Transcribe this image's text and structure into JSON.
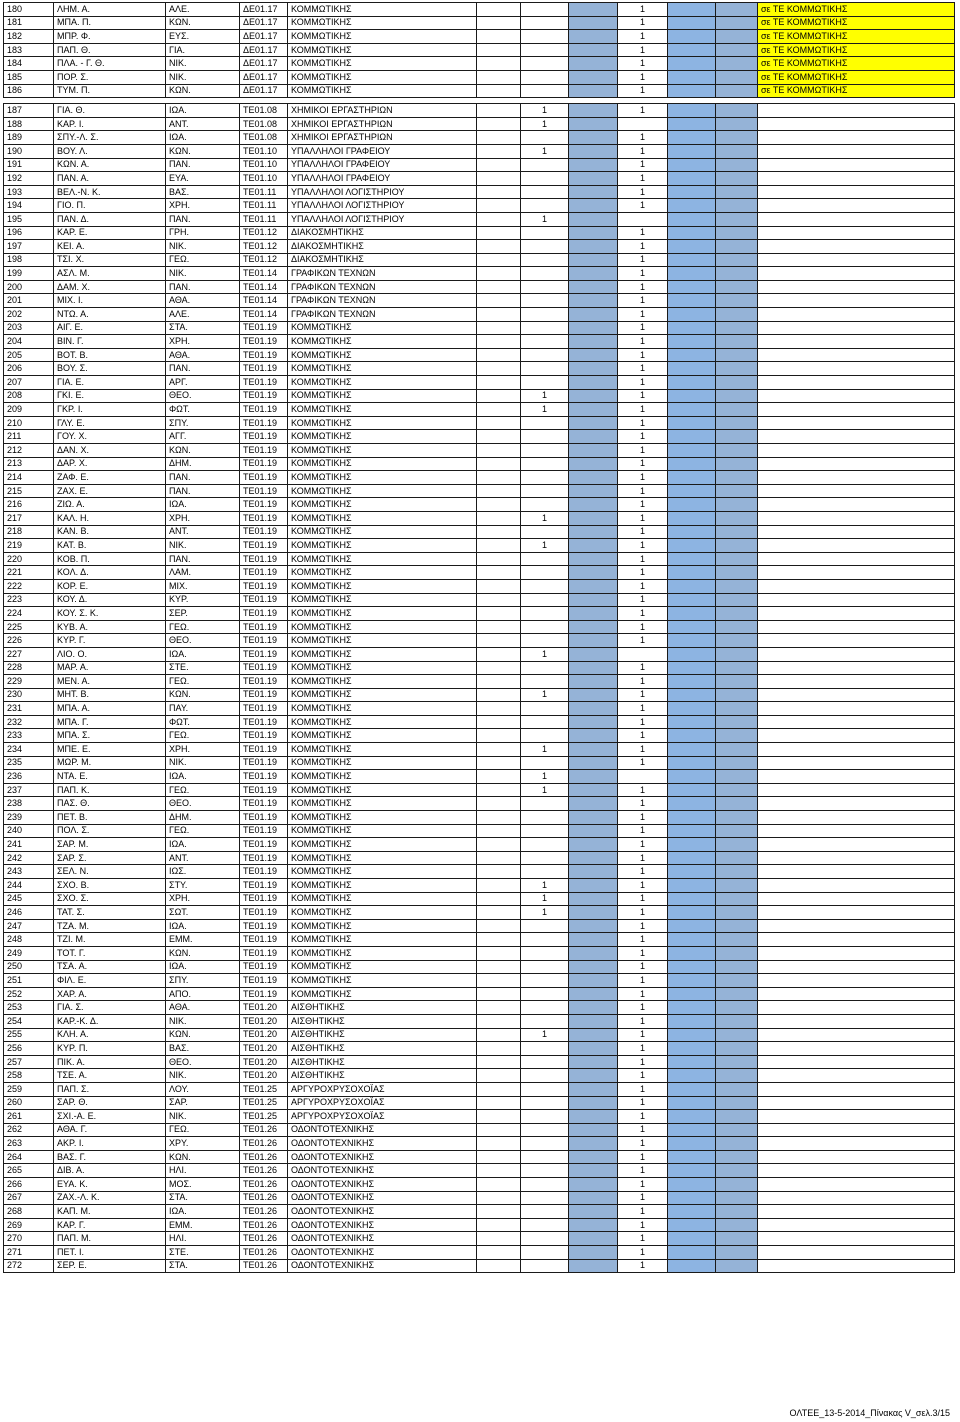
{
  "rows": [
    {
      "n": "180",
      "name": "ΛΗΜ. Α.",
      "father": "ΑΛΕ.",
      "code": "ΔΕ01.17",
      "spec": "ΚΟΜΜΩΤΙΚΗΣ",
      "c1": "",
      "c2": "1",
      "note": "σε ΤΕ ΚΟΜΜΩΤΙΚΗΣ"
    },
    {
      "n": "181",
      "name": "ΜΠΑ. Π.",
      "father": "ΚΩΝ.",
      "code": "ΔΕ01.17",
      "spec": "ΚΟΜΜΩΤΙΚΗΣ",
      "c1": "",
      "c2": "1",
      "note": "σε ΤΕ ΚΟΜΜΩΤΙΚΗΣ"
    },
    {
      "n": "182",
      "name": "ΜΠΡ. Φ.",
      "father": "ΕΥΣ.",
      "code": "ΔΕ01.17",
      "spec": "ΚΟΜΜΩΤΙΚΗΣ",
      "c1": "",
      "c2": "1",
      "note": "σε ΤΕ ΚΟΜΜΩΤΙΚΗΣ"
    },
    {
      "n": "183",
      "name": "ΠΑΠ. Θ.",
      "father": "ΓΙΑ.",
      "code": "ΔΕ01.17",
      "spec": "ΚΟΜΜΩΤΙΚΗΣ",
      "c1": "",
      "c2": "1",
      "note": "σε ΤΕ ΚΟΜΜΩΤΙΚΗΣ"
    },
    {
      "n": "184",
      "name": "ΠΛΑ. - Γ. Θ.",
      "father": "ΝΙΚ.",
      "code": "ΔΕ01.17",
      "spec": "ΚΟΜΜΩΤΙΚΗΣ",
      "c1": "",
      "c2": "1",
      "note": "σε ΤΕ ΚΟΜΜΩΤΙΚΗΣ"
    },
    {
      "n": "185",
      "name": "ΠΟΡ. Σ.",
      "father": "ΝΙΚ.",
      "code": "ΔΕ01.17",
      "spec": "ΚΟΜΜΩΤΙΚΗΣ",
      "c1": "",
      "c2": "1",
      "note": "σε ΤΕ ΚΟΜΜΩΤΙΚΗΣ"
    },
    {
      "n": "186",
      "name": "ΤΥΜ. Π.",
      "father": "ΚΩΝ.",
      "code": "ΔΕ01.17",
      "spec": "ΚΟΜΜΩΤΙΚΗΣ",
      "c1": "",
      "c2": "1",
      "note": "σε ΤΕ ΚΟΜΜΩΤΙΚΗΣ"
    },
    {
      "n": "187",
      "name": "ΓΙΑ. Θ.",
      "father": "ΙΩΑ.",
      "code": "ΤΕ01.08",
      "spec": "ΧΗΜΙΚΟΙ ΕΡΓΑΣΤΗΡΙΩΝ",
      "c1": "1",
      "c2": "1",
      "note": ""
    },
    {
      "n": "188",
      "name": "ΚΑΡ. Ι.",
      "father": "ΑΝΤ.",
      "code": "ΤΕ01.08",
      "spec": "ΧΗΜΙΚΟΙ ΕΡΓΑΣΤΗΡΙΩΝ",
      "c1": "1",
      "c2": "",
      "note": ""
    },
    {
      "n": "189",
      "name": "ΣΠΥ.-Λ. Σ.",
      "father": "ΙΩΑ.",
      "code": "ΤΕ01.08",
      "spec": "ΧΗΜΙΚΟΙ ΕΡΓΑΣΤΗΡΙΩΝ",
      "c1": "",
      "c2": "1",
      "note": ""
    },
    {
      "n": "190",
      "name": "ΒΟΥ. Λ.",
      "father": "ΚΩΝ.",
      "code": "ΤΕ01.10",
      "spec": "ΥΠΑΛΛΗΛΟΙ ΓΡΑΦΕΙΟΥ",
      "c1": "1",
      "c2": "1",
      "note": ""
    },
    {
      "n": "191",
      "name": "ΚΩΝ. Α.",
      "father": "ΠΑΝ.",
      "code": "ΤΕ01.10",
      "spec": "ΥΠΑΛΛΗΛΟΙ ΓΡΑΦΕΙΟΥ",
      "c1": "",
      "c2": "1",
      "note": ""
    },
    {
      "n": "192",
      "name": "ΠΑΝ. Α.",
      "father": "ΕΥΑ.",
      "code": "ΤΕ01.10",
      "spec": "ΥΠΑΛΛΗΛΟΙ ΓΡΑΦΕΙΟΥ",
      "c1": "",
      "c2": "1",
      "note": ""
    },
    {
      "n": "193",
      "name": "ΒΕΛ.-Ν. Κ.",
      "father": "ΒΑΣ.",
      "code": "ΤΕ01.11",
      "spec": "ΥΠΑΛΛΗΛΟΙ ΛΟΓΙΣΤΗΡΙΟΥ",
      "c1": "",
      "c2": "1",
      "note": ""
    },
    {
      "n": "194",
      "name": "ΓΙΟ. Π.",
      "father": "ΧΡΗ.",
      "code": "ΤΕ01.11",
      "spec": "ΥΠΑΛΛΗΛΟΙ ΛΟΓΙΣΤΗΡΙΟΥ",
      "c1": "",
      "c2": "1",
      "note": ""
    },
    {
      "n": "195",
      "name": "ΠΑΝ. Δ.",
      "father": "ΠΑΝ.",
      "code": "ΤΕ01.11",
      "spec": "ΥΠΑΛΛΗΛΟΙ ΛΟΓΙΣΤΗΡΙΟΥ",
      "c1": "1",
      "c2": "",
      "note": ""
    },
    {
      "n": "196",
      "name": "ΚΑΡ. Ε.",
      "father": "ΓΡΗ.",
      "code": "ΤΕ01.12",
      "spec": "ΔΙΑΚΟΣΜΗΤΙΚΗΣ",
      "c1": "",
      "c2": "1",
      "note": ""
    },
    {
      "n": "197",
      "name": "ΚΕΙ. Α.",
      "father": "ΝΙΚ.",
      "code": "ΤΕ01.12",
      "spec": "ΔΙΑΚΟΣΜΗΤΙΚΗΣ",
      "c1": "",
      "c2": "1",
      "note": ""
    },
    {
      "n": "198",
      "name": "ΤΣΙ. Χ.",
      "father": "ΓΕΩ.",
      "code": "ΤΕ01.12",
      "spec": "ΔΙΑΚΟΣΜΗΤΙΚΗΣ",
      "c1": "",
      "c2": "1",
      "note": ""
    },
    {
      "n": "199",
      "name": "ΑΣΛ. Μ.",
      "father": "ΝΙΚ.",
      "code": "ΤΕ01.14",
      "spec": "ΓΡΑΦΙΚΩΝ ΤΕΧΝΩΝ",
      "c1": "",
      "c2": "1",
      "note": ""
    },
    {
      "n": "200",
      "name": "ΔΑΜ. Χ.",
      "father": "ΠΑΝ.",
      "code": "ΤΕ01.14",
      "spec": "ΓΡΑΦΙΚΩΝ ΤΕΧΝΩΝ",
      "c1": "",
      "c2": "1",
      "note": ""
    },
    {
      "n": "201",
      "name": "ΜΙΧ. Ι.",
      "father": "ΑΘΑ.",
      "code": "ΤΕ01.14",
      "spec": "ΓΡΑΦΙΚΩΝ ΤΕΧΝΩΝ",
      "c1": "",
      "c2": "1",
      "note": ""
    },
    {
      "n": "202",
      "name": "ΝΤΩ. Α.",
      "father": "ΑΛΕ.",
      "code": "ΤΕ01.14",
      "spec": "ΓΡΑΦΙΚΩΝ ΤΕΧΝΩΝ",
      "c1": "",
      "c2": "1",
      "note": ""
    },
    {
      "n": "203",
      "name": "ΑΙΓ. Ε.",
      "father": "ΣΤΑ.",
      "code": "ΤΕ01.19",
      "spec": "ΚΟΜΜΩΤΙΚΗΣ",
      "c1": "",
      "c2": "1",
      "note": ""
    },
    {
      "n": "204",
      "name": "ΒΙΝ. Γ.",
      "father": "ΧΡΗ.",
      "code": "ΤΕ01.19",
      "spec": "ΚΟΜΜΩΤΙΚΗΣ",
      "c1": "",
      "c2": "1",
      "note": ""
    },
    {
      "n": "205",
      "name": "ΒΟΤ. Β.",
      "father": "ΑΘΑ.",
      "code": "ΤΕ01.19",
      "spec": "ΚΟΜΜΩΤΙΚΗΣ",
      "c1": "",
      "c2": "1",
      "note": ""
    },
    {
      "n": "206",
      "name": "ΒΟΥ. Σ.",
      "father": "ΠΑΝ.",
      "code": "ΤΕ01.19",
      "spec": "ΚΟΜΜΩΤΙΚΗΣ",
      "c1": "",
      "c2": "1",
      "note": ""
    },
    {
      "n": "207",
      "name": "ΓΙΑ. Ε.",
      "father": "ΑΡΓ.",
      "code": "ΤΕ01.19",
      "spec": "ΚΟΜΜΩΤΙΚΗΣ",
      "c1": "",
      "c2": "1",
      "note": ""
    },
    {
      "n": "208",
      "name": "ΓΚΙ. Ε.",
      "father": "ΘΕΟ.",
      "code": "ΤΕ01.19",
      "spec": "ΚΟΜΜΩΤΙΚΗΣ",
      "c1": "1",
      "c2": "1",
      "note": ""
    },
    {
      "n": "209",
      "name": "ΓΚΡ. Ι.",
      "father": "ΦΩΤ.",
      "code": "ΤΕ01.19",
      "spec": "ΚΟΜΜΩΤΙΚΗΣ",
      "c1": "1",
      "c2": "1",
      "note": ""
    },
    {
      "n": "210",
      "name": "ΓΛΥ. Ε.",
      "father": "ΣΠΥ.",
      "code": "ΤΕ01.19",
      "spec": "ΚΟΜΜΩΤΙΚΗΣ",
      "c1": "",
      "c2": "1",
      "note": ""
    },
    {
      "n": "211",
      "name": "ΓΟΥ. Χ.",
      "father": "ΑΓΓ.",
      "code": "ΤΕ01.19",
      "spec": "ΚΟΜΜΩΤΙΚΗΣ",
      "c1": "",
      "c2": "1",
      "note": ""
    },
    {
      "n": "212",
      "name": "ΔΑΝ. Χ.",
      "father": "ΚΩΝ.",
      "code": "ΤΕ01.19",
      "spec": "ΚΟΜΜΩΤΙΚΗΣ",
      "c1": "",
      "c2": "1",
      "note": ""
    },
    {
      "n": "213",
      "name": "ΔΑΡ. Χ.",
      "father": "ΔΗΜ.",
      "code": "ΤΕ01.19",
      "spec": "ΚΟΜΜΩΤΙΚΗΣ",
      "c1": "",
      "c2": "1",
      "note": ""
    },
    {
      "n": "214",
      "name": "ΖΑΦ. Ε.",
      "father": "ΠΑΝ.",
      "code": "ΤΕ01.19",
      "spec": "ΚΟΜΜΩΤΙΚΗΣ",
      "c1": "",
      "c2": "1",
      "note": ""
    },
    {
      "n": "215",
      "name": "ΖΑΧ. Ε.",
      "father": "ΠΑΝ.",
      "code": "ΤΕ01.19",
      "spec": "ΚΟΜΜΩΤΙΚΗΣ",
      "c1": "",
      "c2": "1",
      "note": ""
    },
    {
      "n": "216",
      "name": "ΖΙΩ. Α.",
      "father": "ΙΩΑ.",
      "code": "ΤΕ01.19",
      "spec": "ΚΟΜΜΩΤΙΚΗΣ",
      "c1": "",
      "c2": "1",
      "note": ""
    },
    {
      "n": "217",
      "name": "ΚΑΛ. Η.",
      "father": "ΧΡΗ.",
      "code": "ΤΕ01.19",
      "spec": "ΚΟΜΜΩΤΙΚΗΣ",
      "c1": "1",
      "c2": "1",
      "note": ""
    },
    {
      "n": "218",
      "name": "ΚΑΝ. Β.",
      "father": "ΑΝΤ.",
      "code": "ΤΕ01.19",
      "spec": "ΚΟΜΜΩΤΙΚΗΣ",
      "c1": "",
      "c2": "1",
      "note": ""
    },
    {
      "n": "219",
      "name": "ΚΑΤ. Β.",
      "father": "ΝΙΚ.",
      "code": "ΤΕ01.19",
      "spec": "ΚΟΜΜΩΤΙΚΗΣ",
      "c1": "1",
      "c2": "1",
      "note": ""
    },
    {
      "n": "220",
      "name": "ΚΟΒ. Π.",
      "father": "ΠΑΝ.",
      "code": "ΤΕ01.19",
      "spec": "ΚΟΜΜΩΤΙΚΗΣ",
      "c1": "",
      "c2": "1",
      "note": ""
    },
    {
      "n": "221",
      "name": "ΚΟΛ. Δ.",
      "father": "ΛΑΜ.",
      "code": "ΤΕ01.19",
      "spec": "ΚΟΜΜΩΤΙΚΗΣ",
      "c1": "",
      "c2": "1",
      "note": ""
    },
    {
      "n": "222",
      "name": "ΚΟΡ. Ε.",
      "father": "ΜΙΧ.",
      "code": "ΤΕ01.19",
      "spec": "ΚΟΜΜΩΤΙΚΗΣ",
      "c1": "",
      "c2": "1",
      "note": ""
    },
    {
      "n": "223",
      "name": "ΚΟΥ. Δ.",
      "father": "ΚΥΡ.",
      "code": "ΤΕ01.19",
      "spec": "ΚΟΜΜΩΤΙΚΗΣ",
      "c1": "",
      "c2": "1",
      "note": ""
    },
    {
      "n": "224",
      "name": "ΚΟΥ. Σ. Κ.",
      "father": "ΣΕΡ.",
      "code": "ΤΕ01.19",
      "spec": "ΚΟΜΜΩΤΙΚΗΣ",
      "c1": "",
      "c2": "1",
      "note": ""
    },
    {
      "n": "225",
      "name": "ΚΥΒ. Α.",
      "father": "ΓΕΩ.",
      "code": "ΤΕ01.19",
      "spec": "ΚΟΜΜΩΤΙΚΗΣ",
      "c1": "",
      "c2": "1",
      "note": ""
    },
    {
      "n": "226",
      "name": "ΚΥΡ. Γ.",
      "father": "ΘΕΟ.",
      "code": "ΤΕ01.19",
      "spec": "ΚΟΜΜΩΤΙΚΗΣ",
      "c1": "",
      "c2": "1",
      "note": ""
    },
    {
      "n": "227",
      "name": "ΛΙΟ. Ο.",
      "father": "ΙΩΑ.",
      "code": "ΤΕ01.19",
      "spec": "ΚΟΜΜΩΤΙΚΗΣ",
      "c1": "1",
      "c2": "",
      "note": ""
    },
    {
      "n": "228",
      "name": "ΜΑΡ. Α.",
      "father": "ΣΤΕ.",
      "code": "ΤΕ01.19",
      "spec": "ΚΟΜΜΩΤΙΚΗΣ",
      "c1": "",
      "c2": "1",
      "note": ""
    },
    {
      "n": "229",
      "name": "ΜΕΝ. Α.",
      "father": "ΓΕΩ.",
      "code": "ΤΕ01.19",
      "spec": "ΚΟΜΜΩΤΙΚΗΣ",
      "c1": "",
      "c2": "1",
      "note": ""
    },
    {
      "n": "230",
      "name": "ΜΗΤ. Β.",
      "father": "ΚΩΝ.",
      "code": "ΤΕ01.19",
      "spec": "ΚΟΜΜΩΤΙΚΗΣ",
      "c1": "1",
      "c2": "1",
      "note": ""
    },
    {
      "n": "231",
      "name": "ΜΠΑ. Α.",
      "father": "ΠΑΥ.",
      "code": "ΤΕ01.19",
      "spec": "ΚΟΜΜΩΤΙΚΗΣ",
      "c1": "",
      "c2": "1",
      "note": ""
    },
    {
      "n": "232",
      "name": "ΜΠΑ. Γ.",
      "father": "ΦΩΤ.",
      "code": "ΤΕ01.19",
      "spec": "ΚΟΜΜΩΤΙΚΗΣ",
      "c1": "",
      "c2": "1",
      "note": ""
    },
    {
      "n": "233",
      "name": "ΜΠΑ. Σ.",
      "father": "ΓΕΩ.",
      "code": "ΤΕ01.19",
      "spec": "ΚΟΜΜΩΤΙΚΗΣ",
      "c1": "",
      "c2": "1",
      "note": ""
    },
    {
      "n": "234",
      "name": "ΜΠΕ. Ε.",
      "father": "ΧΡΗ.",
      "code": "ΤΕ01.19",
      "spec": "ΚΟΜΜΩΤΙΚΗΣ",
      "c1": "1",
      "c2": "1",
      "note": ""
    },
    {
      "n": "235",
      "name": "ΜΩΡ. Μ.",
      "father": "ΝΙΚ.",
      "code": "ΤΕ01.19",
      "spec": "ΚΟΜΜΩΤΙΚΗΣ",
      "c1": "",
      "c2": "1",
      "note": ""
    },
    {
      "n": "236",
      "name": "ΝΤΑ. Ε.",
      "father": "ΙΩΑ.",
      "code": "ΤΕ01.19",
      "spec": "ΚΟΜΜΩΤΙΚΗΣ",
      "c1": "1",
      "c2": "",
      "note": ""
    },
    {
      "n": "237",
      "name": "ΠΑΠ. Κ.",
      "father": "ΓΕΩ.",
      "code": "ΤΕ01.19",
      "spec": "ΚΟΜΜΩΤΙΚΗΣ",
      "c1": "1",
      "c2": "1",
      "note": ""
    },
    {
      "n": "238",
      "name": "ΠΑΣ. Θ.",
      "father": "ΘΕΟ.",
      "code": "ΤΕ01.19",
      "spec": "ΚΟΜΜΩΤΙΚΗΣ",
      "c1": "",
      "c2": "1",
      "note": ""
    },
    {
      "n": "239",
      "name": "ΠΕΤ. Β.",
      "father": "ΔΗΜ.",
      "code": "ΤΕ01.19",
      "spec": "ΚΟΜΜΩΤΙΚΗΣ",
      "c1": "",
      "c2": "1",
      "note": ""
    },
    {
      "n": "240",
      "name": "ΠΟΛ. Σ.",
      "father": "ΓΕΩ.",
      "code": "ΤΕ01.19",
      "spec": "ΚΟΜΜΩΤΙΚΗΣ",
      "c1": "",
      "c2": "1",
      "note": ""
    },
    {
      "n": "241",
      "name": "ΣΑΡ. Μ.",
      "father": "ΙΩΑ.",
      "code": "ΤΕ01.19",
      "spec": "ΚΟΜΜΩΤΙΚΗΣ",
      "c1": "",
      "c2": "1",
      "note": ""
    },
    {
      "n": "242",
      "name": "ΣΑΡ. Σ.",
      "father": "ΑΝΤ.",
      "code": "ΤΕ01.19",
      "spec": "ΚΟΜΜΩΤΙΚΗΣ",
      "c1": "",
      "c2": "1",
      "note": ""
    },
    {
      "n": "243",
      "name": "ΣΕΛ. Ν.",
      "father": "ΙΩΣ.",
      "code": "ΤΕ01.19",
      "spec": "ΚΟΜΜΩΤΙΚΗΣ",
      "c1": "",
      "c2": "1",
      "note": ""
    },
    {
      "n": "244",
      "name": "ΣΧΟ. Β.",
      "father": "ΣΤΥ.",
      "code": "ΤΕ01.19",
      "spec": "ΚΟΜΜΩΤΙΚΗΣ",
      "c1": "1",
      "c2": "1",
      "note": ""
    },
    {
      "n": "245",
      "name": "ΣΧΟ. Σ.",
      "father": "ΧΡΗ.",
      "code": "ΤΕ01.19",
      "spec": "ΚΟΜΜΩΤΙΚΗΣ",
      "c1": "1",
      "c2": "1",
      "note": ""
    },
    {
      "n": "246",
      "name": "ΤΑΤ. Σ.",
      "father": "ΣΩΤ.",
      "code": "ΤΕ01.19",
      "spec": "ΚΟΜΜΩΤΙΚΗΣ",
      "c1": "1",
      "c2": "1",
      "note": ""
    },
    {
      "n": "247",
      "name": "ΤΖΑ. Μ.",
      "father": "ΙΩΑ.",
      "code": "ΤΕ01.19",
      "spec": "ΚΟΜΜΩΤΙΚΗΣ",
      "c1": "",
      "c2": "1",
      "note": ""
    },
    {
      "n": "248",
      "name": "ΤΖΙ. Μ.",
      "father": "ΕΜΜ.",
      "code": "ΤΕ01.19",
      "spec": "ΚΟΜΜΩΤΙΚΗΣ",
      "c1": "",
      "c2": "1",
      "note": ""
    },
    {
      "n": "249",
      "name": "ΤΟΤ. Γ.",
      "father": "ΚΩΝ.",
      "code": "ΤΕ01.19",
      "spec": "ΚΟΜΜΩΤΙΚΗΣ",
      "c1": "",
      "c2": "1",
      "note": ""
    },
    {
      "n": "250",
      "name": "ΤΣΑ. Α.",
      "father": "ΙΩΑ.",
      "code": "ΤΕ01.19",
      "spec": "ΚΟΜΜΩΤΙΚΗΣ",
      "c1": "",
      "c2": "1",
      "note": ""
    },
    {
      "n": "251",
      "name": "ΦΙΛ. Ε.",
      "father": "ΣΠΥ.",
      "code": "ΤΕ01.19",
      "spec": "ΚΟΜΜΩΤΙΚΗΣ",
      "c1": "",
      "c2": "1",
      "note": ""
    },
    {
      "n": "252",
      "name": "ΧΑΡ. Α.",
      "father": "ΑΠΟ.",
      "code": "ΤΕ01.19",
      "spec": "ΚΟΜΜΩΤΙΚΗΣ",
      "c1": "",
      "c2": "1",
      "note": ""
    },
    {
      "n": "253",
      "name": "ΓΙΑ. Σ.",
      "father": "ΑΘΑ.",
      "code": "ΤΕ01.20",
      "spec": "ΑΙΣΘΗΤΙΚΗΣ",
      "c1": "",
      "c2": "1",
      "note": ""
    },
    {
      "n": "254",
      "name": "ΚΑΡ.-Κ. Δ.",
      "father": "ΝΙΚ.",
      "code": "ΤΕ01.20",
      "spec": "ΑΙΣΘΗΤΙΚΗΣ",
      "c1": "",
      "c2": "1",
      "note": ""
    },
    {
      "n": "255",
      "name": "ΚΛΗ. Α.",
      "father": "ΚΩΝ.",
      "code": "ΤΕ01.20",
      "spec": "ΑΙΣΘΗΤΙΚΗΣ",
      "c1": "1",
      "c2": "1",
      "note": ""
    },
    {
      "n": "256",
      "name": "ΚΥΡ. Π.",
      "father": "ΒΑΣ.",
      "code": "ΤΕ01.20",
      "spec": "ΑΙΣΘΗΤΙΚΗΣ",
      "c1": "",
      "c2": "1",
      "note": ""
    },
    {
      "n": "257",
      "name": "ΠΙΚ. Α.",
      "father": "ΘΕΟ.",
      "code": "ΤΕ01.20",
      "spec": "ΑΙΣΘΗΤΙΚΗΣ",
      "c1": "",
      "c2": "1",
      "note": ""
    },
    {
      "n": "258",
      "name": "ΤΣΕ. Α.",
      "father": "ΝΙΚ.",
      "code": "ΤΕ01.20",
      "spec": "ΑΙΣΘΗΤΙΚΗΣ",
      "c1": "",
      "c2": "1",
      "note": ""
    },
    {
      "n": "259",
      "name": "ΠΑΠ. Σ.",
      "father": "ΛΟΥ.",
      "code": "ΤΕ01.25",
      "spec": "ΑΡΓΥΡΟΧΡΥΣΟΧΟΪΑΣ",
      "c1": "",
      "c2": "1",
      "note": ""
    },
    {
      "n": "260",
      "name": "ΣΑΡ. Θ.",
      "father": "ΣΑΡ.",
      "code": "ΤΕ01.25",
      "spec": "ΑΡΓΥΡΟΧΡΥΣΟΧΟΪΑΣ",
      "c1": "",
      "c2": "1",
      "note": ""
    },
    {
      "n": "261",
      "name": "ΣΧΙ.-Α. Ε.",
      "father": "ΝΙΚ.",
      "code": "ΤΕ01.25",
      "spec": "ΑΡΓΥΡΟΧΡΥΣΟΧΟΪΑΣ",
      "c1": "",
      "c2": "1",
      "note": ""
    },
    {
      "n": "262",
      "name": "ΑΘΑ. Γ.",
      "father": "ΓΕΩ.",
      "code": "ΤΕ01.26",
      "spec": "ΟΔΟΝΤΟΤΕΧΝΙΚΗΣ",
      "c1": "",
      "c2": "1",
      "note": ""
    },
    {
      "n": "263",
      "name": "ΑΚΡ. Ι.",
      "father": "ΧΡΥ.",
      "code": "ΤΕ01.26",
      "spec": "ΟΔΟΝΤΟΤΕΧΝΙΚΗΣ",
      "c1": "",
      "c2": "1",
      "note": ""
    },
    {
      "n": "264",
      "name": "ΒΑΣ. Γ.",
      "father": "ΚΩΝ.",
      "code": "ΤΕ01.26",
      "spec": "ΟΔΟΝΤΟΤΕΧΝΙΚΗΣ",
      "c1": "",
      "c2": "1",
      "note": ""
    },
    {
      "n": "265",
      "name": "ΔΙΒ. Α.",
      "father": "ΗΛΙ.",
      "code": "ΤΕ01.26",
      "spec": "ΟΔΟΝΤΟΤΕΧΝΙΚΗΣ",
      "c1": "",
      "c2": "1",
      "note": ""
    },
    {
      "n": "266",
      "name": "ΕΥΑ. Κ.",
      "father": "ΜΟΣ.",
      "code": "ΤΕ01.26",
      "spec": "ΟΔΟΝΤΟΤΕΧΝΙΚΗΣ",
      "c1": "",
      "c2": "1",
      "note": ""
    },
    {
      "n": "267",
      "name": "ΖΑΧ.-Λ. Κ.",
      "father": "ΣΤΑ.",
      "code": "ΤΕ01.26",
      "spec": "ΟΔΟΝΤΟΤΕΧΝΙΚΗΣ",
      "c1": "",
      "c2": "1",
      "note": ""
    },
    {
      "n": "268",
      "name": "ΚΑΠ. Μ.",
      "father": "ΙΩΑ.",
      "code": "ΤΕ01.26",
      "spec": "ΟΔΟΝΤΟΤΕΧΝΙΚΗΣ",
      "c1": "",
      "c2": "1",
      "note": ""
    },
    {
      "n": "269",
      "name": "ΚΑΡ. Γ.",
      "father": "ΕΜΜ.",
      "code": "ΤΕ01.26",
      "spec": "ΟΔΟΝΤΟΤΕΧΝΙΚΗΣ",
      "c1": "",
      "c2": "1",
      "note": ""
    },
    {
      "n": "270",
      "name": "ΠΑΠ. Μ.",
      "father": "ΗΛΙ.",
      "code": "ΤΕ01.26",
      "spec": "ΟΔΟΝΤΟΤΕΧΝΙΚΗΣ",
      "c1": "",
      "c2": "1",
      "note": ""
    },
    {
      "n": "271",
      "name": "ΠΕΤ. Ι.",
      "father": "ΣΤΕ.",
      "code": "ΤΕ01.26",
      "spec": "ΟΔΟΝΤΟΤΕΧΝΙΚΗΣ",
      "c1": "",
      "c2": "1",
      "note": ""
    },
    {
      "n": "272",
      "name": "ΣΕΡ. Ε.",
      "father": "ΣΤΑ.",
      "code": "ΤΕ01.26",
      "spec": "ΟΔΟΝΤΟΤΕΧΝΙΚΗΣ",
      "c1": "",
      "c2": "1",
      "note": ""
    }
  ],
  "colors": {
    "blue_col": "#95b3d7",
    "highlight": "#ffff00"
  },
  "footer": "ΟΛΤΕΕ_13-5-2014_Πίνακας V_σελ.3/15"
}
